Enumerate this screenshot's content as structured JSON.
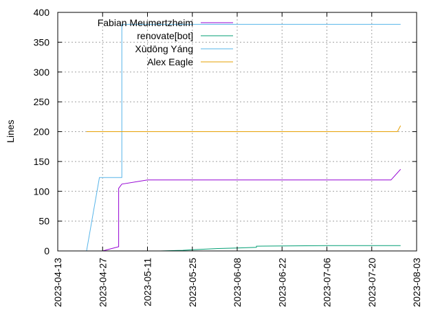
{
  "chart_data": {
    "type": "line",
    "title": "",
    "xlabel": "",
    "ylabel": "Lines",
    "ylim": [
      0,
      400
    ],
    "xlim": [
      "2023-04-13",
      "2023-08-03"
    ],
    "grid": true,
    "legend_position": "top-left",
    "y_ticks": [
      0,
      50,
      100,
      150,
      200,
      250,
      300,
      350,
      400
    ],
    "x_ticks": [
      "2023-04-13",
      "2023-04-27",
      "2023-05-11",
      "2023-05-25",
      "2023-06-08",
      "2023-06-22",
      "2023-07-06",
      "2023-07-20",
      "2023-08-03"
    ],
    "series": [
      {
        "name": "Fabian Meumertzheim",
        "color": "#9400d3",
        "points": [
          [
            "2023-04-27",
            0
          ],
          [
            "2023-05-02",
            7
          ],
          [
            "2023-05-02",
            105
          ],
          [
            "2023-05-03",
            112
          ],
          [
            "2023-05-11",
            119
          ],
          [
            "2023-07-26",
            119
          ],
          [
            "2023-07-29",
            137
          ]
        ]
      },
      {
        "name": "renovate[bot]",
        "color": "#009e73",
        "points": [
          [
            "2023-05-15",
            0
          ],
          [
            "2023-05-22",
            1
          ],
          [
            "2023-05-25",
            2
          ],
          [
            "2023-06-02",
            4
          ],
          [
            "2023-06-08",
            5
          ],
          [
            "2023-06-14",
            6
          ],
          [
            "2023-06-14",
            8
          ],
          [
            "2023-07-06",
            9
          ],
          [
            "2023-07-29",
            9
          ]
        ]
      },
      {
        "name": "Xùdōng Yáng",
        "color": "#56b4e9",
        "points": [
          [
            "2023-04-22",
            0
          ],
          [
            "2023-04-26",
            123
          ],
          [
            "2023-05-03",
            123
          ],
          [
            "2023-05-03",
            380
          ],
          [
            "2023-07-29",
            380
          ]
        ]
      },
      {
        "name": "Alex Eagle",
        "color": "#e69f00",
        "points": [
          [
            "2023-04-22",
            200
          ],
          [
            "2023-07-28",
            200
          ],
          [
            "2023-07-29",
            210
          ]
        ]
      }
    ]
  }
}
